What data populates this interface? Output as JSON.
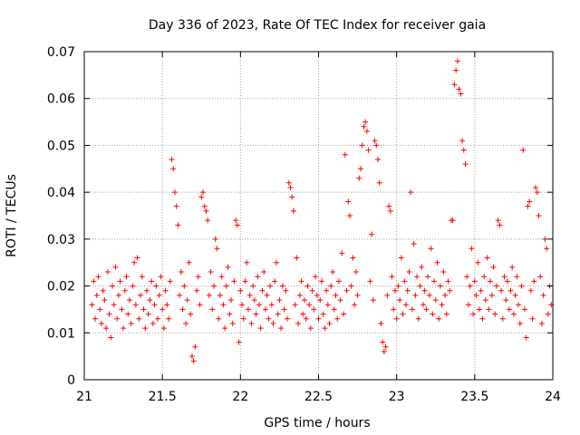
{
  "chart_data": {
    "type": "scatter",
    "title": "Day 336 of 2023, Rate Of TEC Index for receiver gaia",
    "xlabel": "GPS time / hours",
    "ylabel": "ROTI / TECUs",
    "xlim": [
      21,
      24
    ],
    "ylim": [
      0,
      0.07
    ],
    "x_ticks": [
      21,
      21.5,
      22,
      22.5,
      23,
      23.5,
      24
    ],
    "x_tick_labels": [
      "21",
      "21.5",
      "22",
      "22.5",
      "23",
      "23.5",
      "24"
    ],
    "y_ticks": [
      0,
      0.01,
      0.02,
      0.03,
      0.04,
      0.05,
      0.06,
      0.07
    ],
    "y_tick_labels": [
      "0",
      "0.01",
      "0.02",
      "0.03",
      "0.04",
      "0.05",
      "0.06",
      "0.07"
    ],
    "grid": true,
    "marker": "+",
    "color": "#ff0000",
    "series": [
      {
        "name": "ROTI",
        "points": [
          [
            21.05,
            0.016
          ],
          [
            21.06,
            0.021
          ],
          [
            21.07,
            0.013
          ],
          [
            21.08,
            0.018
          ],
          [
            21.09,
            0.022
          ],
          [
            21.1,
            0.015
          ],
          [
            21.11,
            0.012
          ],
          [
            21.12,
            0.019
          ],
          [
            21.13,
            0.017
          ],
          [
            21.14,
            0.011
          ],
          [
            21.15,
            0.023
          ],
          [
            21.16,
            0.014
          ],
          [
            21.17,
            0.009
          ],
          [
            21.18,
            0.02
          ],
          [
            21.19,
            0.016
          ],
          [
            21.2,
            0.024
          ],
          [
            21.21,
            0.013
          ],
          [
            21.22,
            0.018
          ],
          [
            21.23,
            0.021
          ],
          [
            21.24,
            0.015
          ],
          [
            21.25,
            0.011
          ],
          [
            21.26,
            0.019
          ],
          [
            21.27,
            0.022
          ],
          [
            21.28,
            0.014
          ],
          [
            21.29,
            0.017
          ],
          [
            21.3,
            0.012
          ],
          [
            21.31,
            0.02
          ],
          [
            21.32,
            0.025
          ],
          [
            21.33,
            0.016
          ],
          [
            21.34,
            0.026
          ],
          [
            21.35,
            0.013
          ],
          [
            21.36,
            0.018
          ],
          [
            21.37,
            0.022
          ],
          [
            21.38,
            0.015
          ],
          [
            21.39,
            0.011
          ],
          [
            21.4,
            0.019
          ],
          [
            21.41,
            0.014
          ],
          [
            21.42,
            0.017
          ],
          [
            21.43,
            0.021
          ],
          [
            21.44,
            0.012
          ],
          [
            21.45,
            0.016
          ],
          [
            21.46,
            0.02
          ],
          [
            21.47,
            0.013
          ],
          [
            21.48,
            0.018
          ],
          [
            21.49,
            0.022
          ],
          [
            21.5,
            0.015
          ],
          [
            21.51,
            0.011
          ],
          [
            21.52,
            0.019
          ],
          [
            21.53,
            0.016
          ],
          [
            21.54,
            0.013
          ],
          [
            21.55,
            0.021
          ],
          [
            21.56,
            0.047
          ],
          [
            21.57,
            0.045
          ],
          [
            21.58,
            0.04
          ],
          [
            21.59,
            0.037
          ],
          [
            21.6,
            0.033
          ],
          [
            21.61,
            0.018
          ],
          [
            21.62,
            0.023
          ],
          [
            21.63,
            0.015
          ],
          [
            21.64,
            0.02
          ],
          [
            21.65,
            0.012
          ],
          [
            21.66,
            0.017
          ],
          [
            21.67,
            0.025
          ],
          [
            21.68,
            0.014
          ],
          [
            21.69,
            0.005
          ],
          [
            21.7,
            0.004
          ],
          [
            21.71,
            0.007
          ],
          [
            21.72,
            0.019
          ],
          [
            21.73,
            0.022
          ],
          [
            21.74,
            0.016
          ],
          [
            21.75,
            0.039
          ],
          [
            21.76,
            0.04
          ],
          [
            21.77,
            0.037
          ],
          [
            21.78,
            0.036
          ],
          [
            21.79,
            0.034
          ],
          [
            21.8,
            0.018
          ],
          [
            21.81,
            0.023
          ],
          [
            21.82,
            0.015
          ],
          [
            21.83,
            0.02
          ],
          [
            21.84,
            0.03
          ],
          [
            21.85,
            0.028
          ],
          [
            21.86,
            0.013
          ],
          [
            21.87,
            0.018
          ],
          [
            21.88,
            0.022
          ],
          [
            21.89,
            0.016
          ],
          [
            21.9,
            0.011
          ],
          [
            21.91,
            0.02
          ],
          [
            21.92,
            0.024
          ],
          [
            21.93,
            0.014
          ],
          [
            21.94,
            0.017
          ],
          [
            21.95,
            0.012
          ],
          [
            21.96,
            0.021
          ],
          [
            21.97,
            0.034
          ],
          [
            21.98,
            0.033
          ],
          [
            21.99,
            0.008
          ],
          [
            22.0,
            0.019
          ],
          [
            22.01,
            0.016
          ],
          [
            22.02,
            0.013
          ],
          [
            22.03,
            0.021
          ],
          [
            22.04,
            0.025
          ],
          [
            22.05,
            0.015
          ],
          [
            22.06,
            0.018
          ],
          [
            22.07,
            0.012
          ],
          [
            22.08,
            0.02
          ],
          [
            22.09,
            0.017
          ],
          [
            22.1,
            0.014
          ],
          [
            22.11,
            0.022
          ],
          [
            22.12,
            0.016
          ],
          [
            22.13,
            0.011
          ],
          [
            22.14,
            0.019
          ],
          [
            22.15,
            0.023
          ],
          [
            22.16,
            0.015
          ],
          [
            22.17,
            0.018
          ],
          [
            22.18,
            0.013
          ],
          [
            22.19,
            0.02
          ],
          [
            22.2,
            0.016
          ],
          [
            22.21,
            0.012
          ],
          [
            22.22,
            0.021
          ],
          [
            22.23,
            0.025
          ],
          [
            22.24,
            0.014
          ],
          [
            22.25,
            0.017
          ],
          [
            22.26,
            0.011
          ],
          [
            22.27,
            0.02
          ],
          [
            22.28,
            0.015
          ],
          [
            22.29,
            0.019
          ],
          [
            22.3,
            0.013
          ],
          [
            22.31,
            0.042
          ],
          [
            22.32,
            0.041
          ],
          [
            22.33,
            0.039
          ],
          [
            22.34,
            0.036
          ],
          [
            22.35,
            0.016
          ],
          [
            22.36,
            0.026
          ],
          [
            22.37,
            0.012
          ],
          [
            22.38,
            0.018
          ],
          [
            22.39,
            0.021
          ],
          [
            22.4,
            0.014
          ],
          [
            22.41,
            0.017
          ],
          [
            22.42,
            0.013
          ],
          [
            22.43,
            0.02
          ],
          [
            22.44,
            0.016
          ],
          [
            22.45,
            0.011
          ],
          [
            22.46,
            0.019
          ],
          [
            22.47,
            0.015
          ],
          [
            22.48,
            0.022
          ],
          [
            22.49,
            0.018
          ],
          [
            22.5,
            0.013
          ],
          [
            22.51,
            0.017
          ],
          [
            22.52,
            0.021
          ],
          [
            22.53,
            0.014
          ],
          [
            22.54,
            0.011
          ],
          [
            22.55,
            0.019
          ],
          [
            22.56,
            0.016
          ],
          [
            22.57,
            0.012
          ],
          [
            22.58,
            0.02
          ],
          [
            22.59,
            0.023
          ],
          [
            22.6,
            0.015
          ],
          [
            22.61,
            0.018
          ],
          [
            22.62,
            0.013
          ],
          [
            22.63,
            0.021
          ],
          [
            22.64,
            0.017
          ],
          [
            22.65,
            0.027
          ],
          [
            22.66,
            0.014
          ],
          [
            22.67,
            0.048
          ],
          [
            22.68,
            0.019
          ],
          [
            22.69,
            0.038
          ],
          [
            22.7,
            0.035
          ],
          [
            22.71,
            0.02
          ],
          [
            22.72,
            0.026
          ],
          [
            22.73,
            0.016
          ],
          [
            22.74,
            0.023
          ],
          [
            22.75,
            0.018
          ],
          [
            22.76,
            0.043
          ],
          [
            22.77,
            0.045
          ],
          [
            22.78,
            0.05
          ],
          [
            22.79,
            0.054
          ],
          [
            22.8,
            0.055
          ],
          [
            22.81,
            0.053
          ],
          [
            22.82,
            0.049
          ],
          [
            22.83,
            0.021
          ],
          [
            22.84,
            0.031
          ],
          [
            22.85,
            0.017
          ],
          [
            22.86,
            0.051
          ],
          [
            22.87,
            0.05
          ],
          [
            22.88,
            0.047
          ],
          [
            22.89,
            0.042
          ],
          [
            22.9,
            0.012
          ],
          [
            22.91,
            0.008
          ],
          [
            22.92,
            0.006
          ],
          [
            22.93,
            0.007
          ],
          [
            22.94,
            0.018
          ],
          [
            22.95,
            0.037
          ],
          [
            22.96,
            0.036
          ],
          [
            22.97,
            0.022
          ],
          [
            22.98,
            0.015
          ],
          [
            22.99,
            0.019
          ],
          [
            23.0,
            0.013
          ],
          [
            23.01,
            0.02
          ],
          [
            23.02,
            0.017
          ],
          [
            23.03,
            0.026
          ],
          [
            23.04,
            0.014
          ],
          [
            23.05,
            0.021
          ],
          [
            23.06,
            0.016
          ],
          [
            23.07,
            0.019
          ],
          [
            23.08,
            0.023
          ],
          [
            23.09,
            0.04
          ],
          [
            23.1,
            0.015
          ],
          [
            23.11,
            0.029
          ],
          [
            23.12,
            0.018
          ],
          [
            23.13,
            0.022
          ],
          [
            23.14,
            0.013
          ],
          [
            23.15,
            0.02
          ],
          [
            23.16,
            0.024
          ],
          [
            23.17,
            0.016
          ],
          [
            23.18,
            0.019
          ],
          [
            23.19,
            0.015
          ],
          [
            23.2,
            0.022
          ],
          [
            23.21,
            0.018
          ],
          [
            23.22,
            0.028
          ],
          [
            23.23,
            0.014
          ],
          [
            23.24,
            0.021
          ],
          [
            23.25,
            0.017
          ],
          [
            23.26,
            0.025
          ],
          [
            23.27,
            0.013
          ],
          [
            23.28,
            0.02
          ],
          [
            23.29,
            0.016
          ],
          [
            23.3,
            0.023
          ],
          [
            23.31,
            0.018
          ],
          [
            23.32,
            0.014
          ],
          [
            23.33,
            0.021
          ],
          [
            23.34,
            0.019
          ],
          [
            23.35,
            0.034
          ],
          [
            23.36,
            0.034
          ],
          [
            23.37,
            0.063
          ],
          [
            23.38,
            0.066
          ],
          [
            23.39,
            0.068
          ],
          [
            23.4,
            0.062
          ],
          [
            23.41,
            0.061
          ],
          [
            23.42,
            0.051
          ],
          [
            23.43,
            0.049
          ],
          [
            23.44,
            0.046
          ],
          [
            23.45,
            0.022
          ],
          [
            23.46,
            0.016
          ],
          [
            23.47,
            0.02
          ],
          [
            23.48,
            0.028
          ],
          [
            23.49,
            0.014
          ],
          [
            23.5,
            0.021
          ],
          [
            23.51,
            0.018
          ],
          [
            23.52,
            0.025
          ],
          [
            23.53,
            0.015
          ],
          [
            23.54,
            0.019
          ],
          [
            23.55,
            0.013
          ],
          [
            23.56,
            0.022
          ],
          [
            23.57,
            0.017
          ],
          [
            23.58,
            0.026
          ],
          [
            23.59,
            0.015
          ],
          [
            23.6,
            0.021
          ],
          [
            23.61,
            0.018
          ],
          [
            23.62,
            0.024
          ],
          [
            23.63,
            0.014
          ],
          [
            23.64,
            0.02
          ],
          [
            23.65,
            0.034
          ],
          [
            23.66,
            0.033
          ],
          [
            23.67,
            0.019
          ],
          [
            23.68,
            0.013
          ],
          [
            23.69,
            0.022
          ],
          [
            23.7,
            0.017
          ],
          [
            23.71,
            0.021
          ],
          [
            23.72,
            0.015
          ],
          [
            23.73,
            0.019
          ],
          [
            23.74,
            0.024
          ],
          [
            23.75,
            0.014
          ],
          [
            23.76,
            0.018
          ],
          [
            23.77,
            0.022
          ],
          [
            23.78,
            0.016
          ],
          [
            23.79,
            0.012
          ],
          [
            23.8,
            0.02
          ],
          [
            23.81,
            0.049
          ],
          [
            23.82,
            0.015
          ],
          [
            23.83,
            0.009
          ],
          [
            23.84,
            0.037
          ],
          [
            23.85,
            0.038
          ],
          [
            23.86,
            0.019
          ],
          [
            23.87,
            0.013
          ],
          [
            23.88,
            0.021
          ],
          [
            23.89,
            0.041
          ],
          [
            23.9,
            0.04
          ],
          [
            23.91,
            0.035
          ],
          [
            23.92,
            0.022
          ],
          [
            23.93,
            0.012
          ],
          [
            23.94,
            0.018
          ],
          [
            23.95,
            0.03
          ],
          [
            23.96,
            0.028
          ],
          [
            23.97,
            0.014
          ],
          [
            23.98,
            0.02
          ],
          [
            23.99,
            0.016
          ]
        ]
      }
    ]
  }
}
